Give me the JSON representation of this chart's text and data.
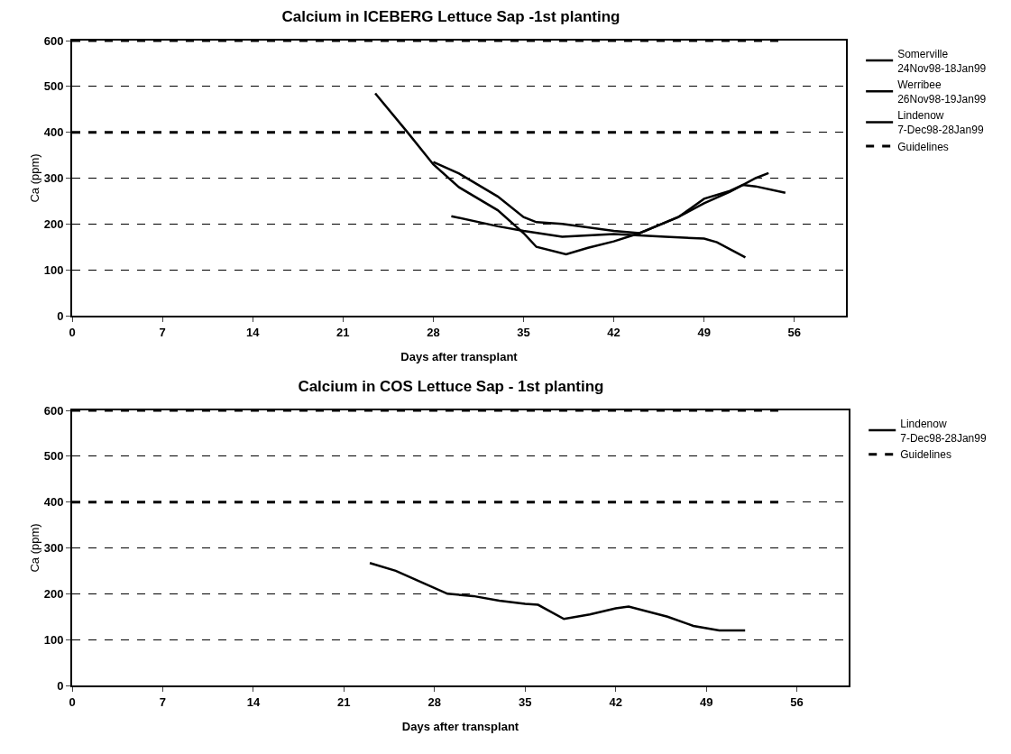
{
  "chart_data": [
    {
      "type": "line",
      "title": "Calcium in ICEBERG Lettuce Sap -1st planting",
      "xlabel": "Days after transplant",
      "ylabel": "Ca (ppm)",
      "xlim": [
        0,
        60
      ],
      "xticks": [
        0,
        7,
        14,
        21,
        28,
        35,
        42,
        49,
        56
      ],
      "ylim": [
        0,
        600
      ],
      "yticks": [
        0,
        100,
        200,
        300,
        400,
        500,
        600
      ],
      "grid": "y",
      "legend": "right",
      "series": [
        {
          "name": "Somerville 24Nov98-18Jan99",
          "color": "#000000",
          "line_style": "solid",
          "x": [
            23.5,
            26,
            28,
            30,
            33,
            35,
            36,
            38.3,
            40,
            42,
            44,
            47,
            49,
            51,
            53,
            54
          ],
          "values": [
            485,
            400,
            330,
            280,
            230,
            180,
            150,
            134,
            148,
            162,
            180,
            215,
            245,
            270,
            300,
            311
          ]
        },
        {
          "name": "Werribee 26Nov98-19Jan99",
          "color": "#000000",
          "line_style": "solid",
          "x": [
            28,
            30,
            33,
            35,
            36,
            38,
            42,
            44,
            47,
            49,
            51,
            52,
            53,
            55.3
          ],
          "values": [
            335,
            310,
            260,
            215,
            204,
            200,
            185,
            180,
            215,
            255,
            272,
            285,
            282,
            268
          ]
        },
        {
          "name": "Lindenow 7-Dec98-28Jan99",
          "color": "#000000",
          "line_style": "solid",
          "x": [
            29.4,
            33,
            35,
            38,
            42,
            46,
            49,
            50,
            52.2
          ],
          "values": [
            217,
            195,
            185,
            172,
            178,
            172,
            168,
            160,
            127
          ]
        },
        {
          "name": "Guidelines",
          "color": "#000000",
          "line_style": "dashed",
          "x": [
            0,
            55
          ],
          "values": [
            600,
            600
          ]
        },
        {
          "color": "#000000",
          "line_style": "dashed",
          "x": [
            0,
            55
          ],
          "values": [
            400,
            400
          ]
        }
      ]
    },
    {
      "type": "line",
      "title": "Calcium in COS Lettuce Sap - 1st planting",
      "xlabel": "Days after transplant",
      "ylabel": "Ca (ppm)",
      "xlim": [
        0,
        60
      ],
      "xticks": [
        0,
        7,
        14,
        21,
        28,
        35,
        42,
        49,
        56
      ],
      "ylim": [
        0,
        600
      ],
      "yticks": [
        0,
        100,
        200,
        300,
        400,
        500,
        600
      ],
      "grid": "y",
      "legend": "right",
      "series": [
        {
          "name": "Lindenow 7-Dec98-28Jan99",
          "color": "#000000",
          "line_style": "solid",
          "x": [
            23,
            25,
            27,
            29,
            31,
            33,
            35,
            36,
            38,
            40,
            42,
            43,
            46,
            48,
            50,
            52
          ],
          "values": [
            267,
            250,
            225,
            200,
            195,
            185,
            178,
            176,
            145,
            155,
            168,
            172,
            150,
            130,
            120,
            120
          ]
        },
        {
          "name": "Guidelines",
          "color": "#000000",
          "line_style": "dashed",
          "x": [
            0,
            55
          ],
          "values": [
            600,
            600
          ]
        },
        {
          "color": "#000000",
          "line_style": "dashed",
          "x": [
            0,
            55
          ],
          "values": [
            400,
            400
          ]
        }
      ]
    }
  ]
}
